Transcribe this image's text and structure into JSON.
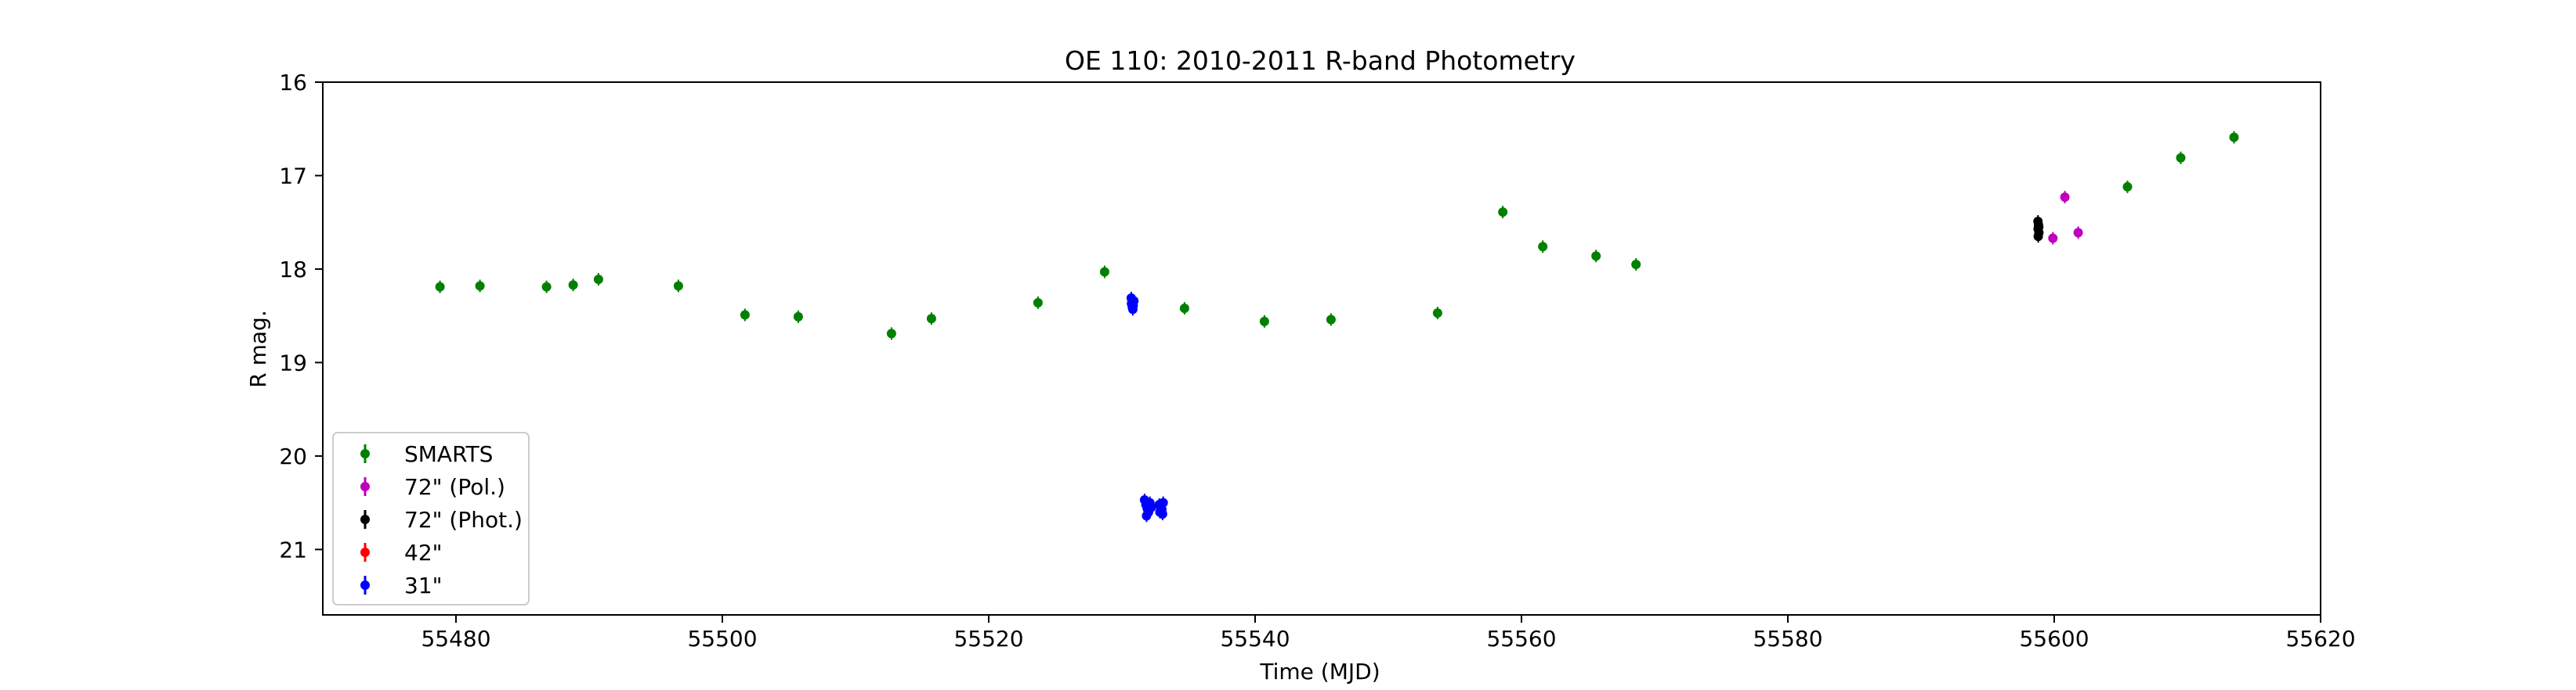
{
  "chart_data": {
    "type": "scatter",
    "title": "OE 110: 2010-2011 R-band Photometry",
    "xlabel": "Time (MJD)",
    "ylabel": "R mag.",
    "xlim": [
      55470,
      55620
    ],
    "ylim": [
      21.7,
      16
    ],
    "y_inverted": true,
    "grid": false,
    "legend_position": "lower-left",
    "xticks": [
      55480,
      55500,
      55520,
      55540,
      55560,
      55580,
      55600,
      55620
    ],
    "yticks": [
      16,
      17,
      18,
      19,
      20,
      21
    ],
    "series": [
      {
        "name": "SMARTS",
        "color": "#008000",
        "points": [
          [
            55478.8,
            18.19
          ],
          [
            55481.8,
            18.18
          ],
          [
            55486.8,
            18.19
          ],
          [
            55488.8,
            18.17
          ],
          [
            55490.7,
            18.11
          ],
          [
            55496.7,
            18.18
          ],
          [
            55501.7,
            18.49
          ],
          [
            55505.7,
            18.51
          ],
          [
            55512.7,
            18.69
          ],
          [
            55515.7,
            18.53
          ],
          [
            55523.7,
            18.36
          ],
          [
            55528.7,
            18.03
          ],
          [
            55534.7,
            18.42
          ],
          [
            55540.7,
            18.56
          ],
          [
            55545.7,
            18.54
          ],
          [
            55553.7,
            18.47
          ],
          [
            55558.6,
            17.39
          ],
          [
            55561.6,
            17.76
          ],
          [
            55565.6,
            17.86
          ],
          [
            55568.6,
            17.95
          ],
          [
            55605.5,
            17.12
          ],
          [
            55609.5,
            16.81
          ],
          [
            55613.5,
            16.59
          ]
        ]
      },
      {
        "name": "72\" (Pol.)",
        "color": "#bf00bf",
        "points": [
          [
            55599.9,
            17.67
          ],
          [
            55600.8,
            17.23
          ],
          [
            55601.8,
            17.61
          ]
        ]
      },
      {
        "name": "72\" (Phot.)",
        "color": "#000000",
        "points": [
          [
            55598.78,
            17.49
          ],
          [
            55598.82,
            17.53
          ],
          [
            55598.79,
            17.57
          ],
          [
            55598.85,
            17.61
          ],
          [
            55598.8,
            17.65
          ],
          [
            55598.84,
            17.55
          ]
        ]
      },
      {
        "name": "42\"",
        "color": "#ff0000",
        "points": []
      },
      {
        "name": "31\"",
        "color": "#0000ff",
        "points": [
          [
            55530.7,
            18.31
          ],
          [
            55530.75,
            18.33
          ],
          [
            55530.8,
            18.35
          ],
          [
            55530.72,
            18.37
          ],
          [
            55530.85,
            18.39
          ],
          [
            55530.78,
            18.41
          ],
          [
            55530.82,
            18.43
          ],
          [
            55530.9,
            18.34
          ],
          [
            55531.7,
            20.47
          ],
          [
            55531.8,
            20.52
          ],
          [
            55531.9,
            20.56
          ],
          [
            55532.0,
            20.6
          ],
          [
            55531.85,
            20.64
          ],
          [
            55532.1,
            20.5
          ],
          [
            55532.2,
            20.55
          ],
          [
            55531.95,
            20.58
          ],
          [
            55532.8,
            20.52
          ],
          [
            55532.9,
            20.55
          ],
          [
            55533.0,
            20.57
          ],
          [
            55533.1,
            20.5
          ],
          [
            55532.85,
            20.6
          ],
          [
            55533.05,
            20.62
          ]
        ]
      }
    ]
  }
}
